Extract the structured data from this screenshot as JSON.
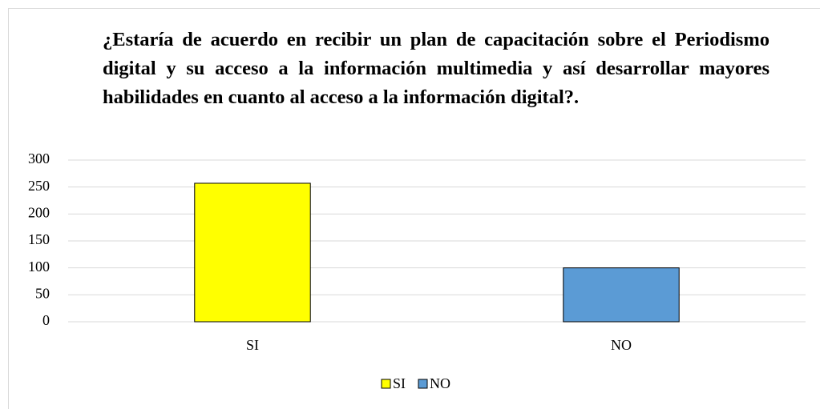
{
  "chart_data": {
    "type": "bar",
    "title": "¿Estaría de acuerdo en recibir un plan de capacitación sobre el Periodismo digital y su acceso a la información multimedia y así desarrollar mayores habilidades en cuanto al acceso a la información digital?.",
    "categories": [
      "SI",
      "NO"
    ],
    "values": [
      257,
      100
    ],
    "colors": [
      "#ffff00",
      "#5b9bd5"
    ],
    "ylim": [
      0,
      300
    ],
    "yticks": [
      0,
      50,
      100,
      150,
      200,
      250,
      300
    ],
    "grid": true,
    "legend": "bottom"
  }
}
